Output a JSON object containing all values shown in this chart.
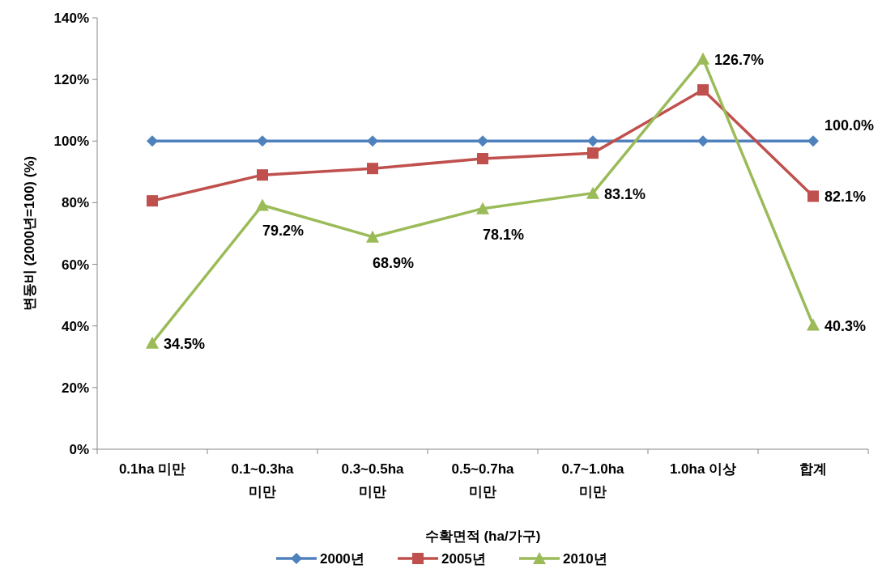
{
  "chart_data": {
    "type": "line",
    "xlabel": "수확면적 (ha/가구)",
    "ylabel": "변동비 (2000년=100) (%)",
    "categories": [
      "0.1ha 미만",
      "0.1~0.3ha 미만",
      "0.3~0.5ha 미만",
      "0.5~0.7ha 미만",
      "0.7~1.0ha 미만",
      "1.0ha 이상",
      "합계"
    ],
    "ylim": [
      0,
      140
    ],
    "yticks": [
      {
        "value": 0,
        "label": "0%"
      },
      {
        "value": 20,
        "label": "20%"
      },
      {
        "value": 40,
        "label": "40%"
      },
      {
        "value": 60,
        "label": "60%"
      },
      {
        "value": 80,
        "label": "80%"
      },
      {
        "value": 100,
        "label": "100%"
      },
      {
        "value": 120,
        "label": "120%"
      },
      {
        "value": 140,
        "label": "140%"
      }
    ],
    "grid": false,
    "legend": "bottom",
    "series": [
      {
        "name": "2000년",
        "color": "#4f81bd",
        "marker": "diamond",
        "values": [
          100,
          100,
          100,
          100,
          100,
          100,
          100
        ],
        "value_labels": [
          null,
          null,
          null,
          null,
          null,
          null,
          "100.0%"
        ]
      },
      {
        "name": "2005년",
        "color": "#c0504d",
        "marker": "square",
        "values": [
          80.6,
          89.0,
          91.1,
          94.3,
          96.1,
          116.6,
          82.1
        ],
        "value_labels": [
          null,
          null,
          null,
          null,
          null,
          null,
          "82.1%"
        ]
      },
      {
        "name": "2010년",
        "color": "#9bbb59",
        "marker": "triangle",
        "values": [
          34.5,
          79.2,
          68.9,
          78.1,
          83.1,
          126.7,
          40.3
        ],
        "value_labels": [
          "34.5%",
          "79.2%",
          "68.9%",
          "78.1%",
          "83.1%",
          "126.7%",
          "40.3%"
        ]
      }
    ]
  }
}
